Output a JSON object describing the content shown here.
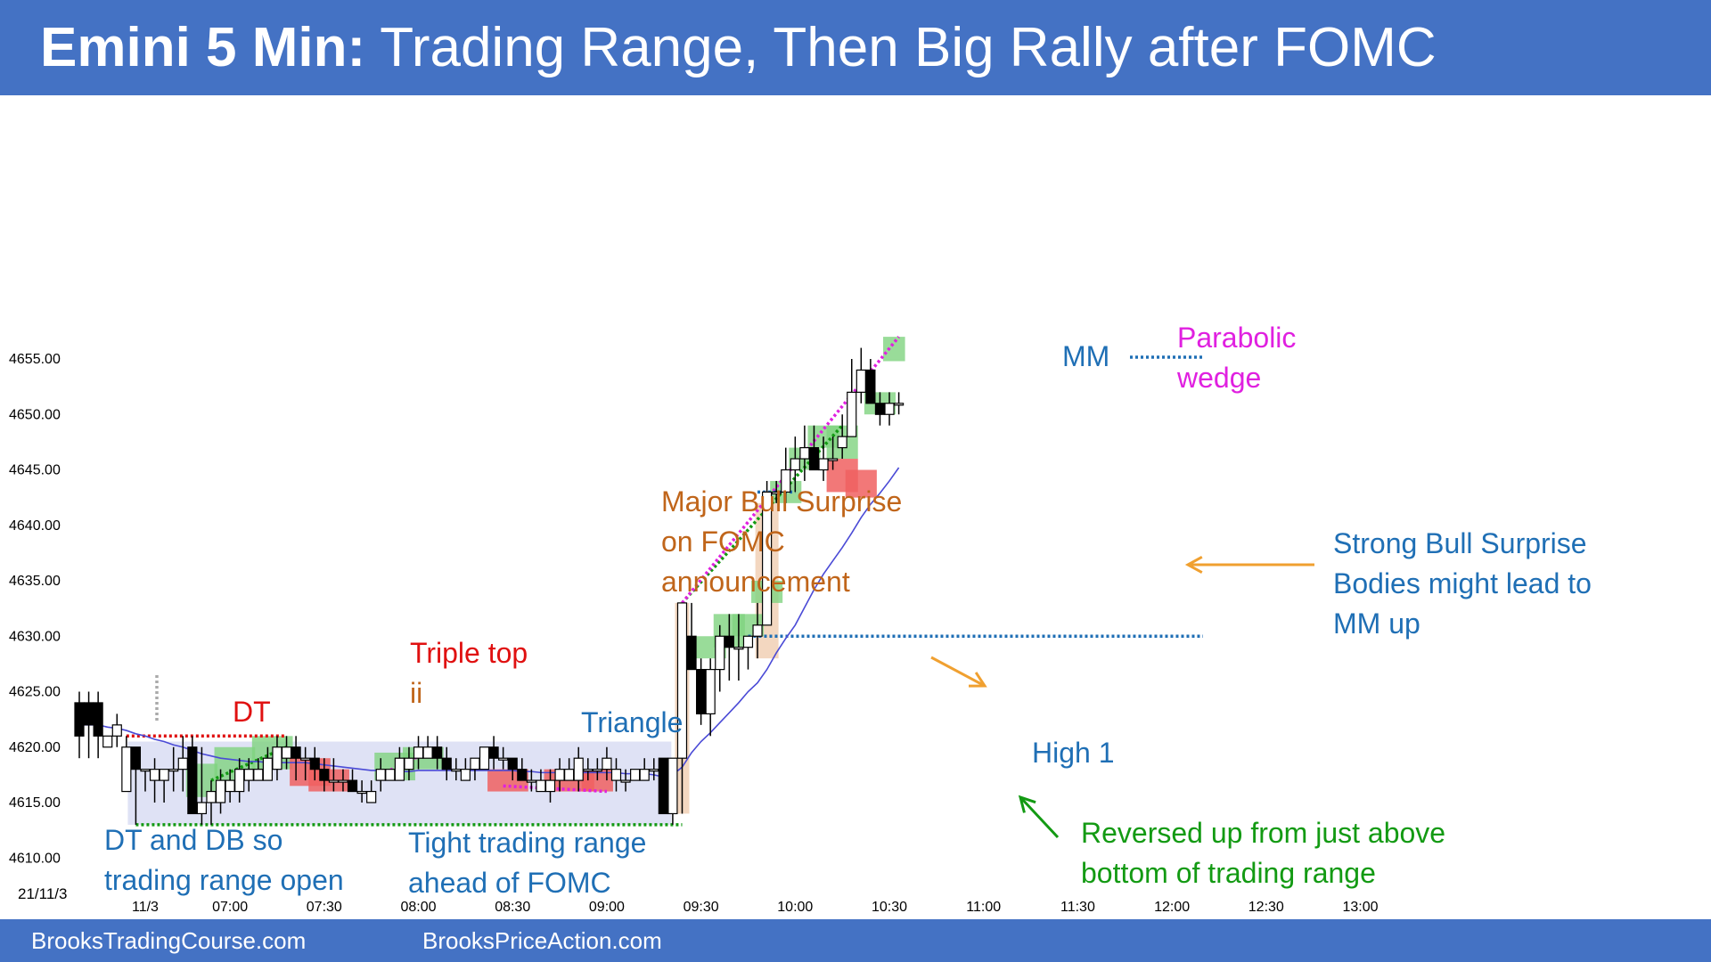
{
  "header": {
    "title_bold": "Emini 5 Min:",
    "title_rest": " Trading Range, Then Big Rally after FOMC",
    "background": "#4472c4"
  },
  "footer": {
    "left": "BrooksTradingCourse.com",
    "right": "BrooksPriceAction.com"
  },
  "colors": {
    "bull_body": "#ffffff",
    "bear_body": "#000000",
    "ema": "#4a4ad6",
    "green_box": "#7fd37f",
    "red_box": "#f06060",
    "range_box": "#dfe2f5",
    "surprise_bar": "#f3d7c0",
    "blue_text": "#1f6fb5",
    "red_text": "#e01010",
    "orange_text": "#c0651a",
    "green_text": "#139a13",
    "magenta_text": "#e020e0"
  },
  "chart_data": {
    "type": "candlestick",
    "date_label": "21/11/3",
    "x_tick_labels": [
      "11/3",
      "07:00",
      "07:30",
      "08:00",
      "08:30",
      "09:00",
      "09:30",
      "10:00",
      "10:30",
      "11:00",
      "11:30",
      "12:00",
      "12:30",
      "13:00"
    ],
    "x_tick_bars": [
      7,
      16,
      26,
      36,
      46,
      56,
      66,
      76,
      86,
      96,
      106,
      116,
      126,
      136
    ],
    "y_tick_labels": [
      "4655.00",
      "4650.00",
      "4645.00",
      "4640.00",
      "4635.00",
      "4630.00",
      "4625.00",
      "4620.00",
      "4615.00",
      "4610.00"
    ],
    "ylim": [
      4608.5,
      4657.5
    ],
    "grid": false,
    "candles": [
      [
        4624,
        4625,
        4619,
        4621
      ],
      [
        4624,
        4625,
        4619,
        4622
      ],
      [
        4624,
        4625,
        4619,
        4621
      ],
      [
        4620,
        4621,
        4620,
        4621
      ],
      [
        4621,
        4623,
        4620,
        4622
      ],
      [
        4616,
        4621,
        4616,
        4620
      ],
      [
        4620,
        4620,
        4613,
        4618
      ],
      [
        4618,
        4618,
        4616,
        4618
      ],
      [
        4617,
        4619,
        4615,
        4618
      ],
      [
        4617,
        4618,
        4615,
        4618
      ],
      [
        4618,
        4620,
        4616,
        4618
      ],
      [
        4618,
        4621,
        4616,
        4619
      ],
      [
        4620,
        4621,
        4614,
        4614
      ],
      [
        4614,
        4620,
        4613,
        4615
      ],
      [
        4615,
        4617,
        4613,
        4616
      ],
      [
        4615,
        4618,
        4614,
        4617
      ],
      [
        4616,
        4618,
        4615,
        4617
      ],
      [
        4616,
        4619,
        4615,
        4618
      ],
      [
        4617,
        4619,
        4616,
        4618
      ],
      [
        4617,
        4619,
        4617,
        4618
      ],
      [
        4617,
        4620,
        4617,
        4619
      ],
      [
        4618,
        4621,
        4617,
        4620
      ],
      [
        4619,
        4621,
        4618,
        4620
      ],
      [
        4620,
        4621,
        4617,
        4619
      ],
      [
        4619,
        4620,
        4617,
        4619
      ],
      [
        4619,
        4620,
        4617,
        4618
      ],
      [
        4618,
        4619,
        4616,
        4617
      ],
      [
        4617,
        4619,
        4616,
        4617
      ],
      [
        4617,
        4618,
        4616,
        4617
      ],
      [
        4617,
        4618,
        4616,
        4616
      ],
      [
        4616,
        4617,
        4615,
        4616
      ],
      [
        4615,
        4617,
        4615,
        4616
      ],
      [
        4617,
        4619,
        4616,
        4618
      ],
      [
        4617,
        4618,
        4617,
        4618
      ],
      [
        4617,
        4620,
        4617,
        4619
      ],
      [
        4618,
        4620,
        4617,
        4619
      ],
      [
        4619,
        4621,
        4618,
        4620
      ],
      [
        4619,
        4621,
        4619,
        4620
      ],
      [
        4620,
        4621,
        4618,
        4619
      ],
      [
        4619,
        4620,
        4617,
        4618
      ],
      [
        4618,
        4619,
        4617,
        4618
      ],
      [
        4617,
        4619,
        4617,
        4618
      ],
      [
        4618,
        4619,
        4617,
        4619
      ],
      [
        4618,
        4620,
        4618,
        4620
      ],
      [
        4620,
        4621,
        4618,
        4619
      ],
      [
        4619,
        4620,
        4618,
        4619
      ],
      [
        4619,
        4619,
        4617,
        4618
      ],
      [
        4618,
        4619,
        4617,
        4617
      ],
      [
        4617,
        4618,
        4616,
        4617
      ],
      [
        4616,
        4618,
        4616,
        4617
      ],
      [
        4616,
        4618,
        4615,
        4617
      ],
      [
        4617,
        4619,
        4616,
        4618
      ],
      [
        4617,
        4619,
        4617,
        4618
      ],
      [
        4617,
        4620,
        4616,
        4619
      ],
      [
        4618,
        4619,
        4617,
        4618
      ],
      [
        4618,
        4619,
        4617,
        4618
      ],
      [
        4618,
        4620,
        4617,
        4619
      ],
      [
        4617,
        4619,
        4616,
        4618
      ],
      [
        4617,
        4618,
        4616,
        4617
      ],
      [
        4617,
        4618,
        4617,
        4618
      ],
      [
        4617,
        4619,
        4617,
        4618
      ],
      [
        4618,
        4619,
        4617,
        4618
      ],
      [
        4619,
        4619,
        4614,
        4614
      ],
      [
        4614,
        4619,
        4613,
        4619
      ],
      [
        4619,
        4633,
        4614,
        4633
      ],
      [
        4630,
        4633,
        4627,
        4627
      ],
      [
        4627,
        4628,
        4622,
        4623
      ],
      [
        4623,
        4628,
        4621,
        4627
      ],
      [
        4627,
        4631,
        4625,
        4630
      ],
      [
        4630,
        4632,
        4626,
        4629
      ],
      [
        4629,
        4632,
        4626,
        4629
      ],
      [
        4629,
        4630,
        4627,
        4630
      ],
      [
        4630,
        4633,
        4628,
        4631
      ],
      [
        4631,
        4644,
        4631,
        4643
      ],
      [
        4643,
        4644,
        4642,
        4643
      ],
      [
        4643,
        4647,
        4642,
        4645
      ],
      [
        4645,
        4648,
        4643,
        4646
      ],
      [
        4646,
        4649,
        4644,
        4647
      ],
      [
        4647,
        4649,
        4645,
        4645
      ],
      [
        4645,
        4648,
        4644,
        4646
      ],
      [
        4646,
        4648,
        4645,
        4646
      ],
      [
        4647,
        4650,
        4646,
        4648
      ],
      [
        4648,
        4655,
        4648,
        4652
      ],
      [
        4652,
        4656,
        4651,
        4654
      ],
      [
        4654,
        4655,
        4651,
        4651
      ],
      [
        4651,
        4652,
        4649,
        4650
      ],
      [
        4650,
        4652,
        4649,
        4651
      ],
      [
        4651,
        4652,
        4650,
        4651
      ]
    ],
    "ema_20": [
      4622,
      4622,
      4622,
      4621.8,
      4621.7,
      4621.5,
      4621.2,
      4621,
      4620.7,
      4620.5,
      4620.2,
      4620,
      4619.7,
      4619.4,
      4619.2,
      4619,
      4618.9,
      4618.8,
      4618.7,
      4618.7,
      4618.6,
      4618.6,
      4618.6,
      4618.6,
      4618.6,
      4618.5,
      4618.4,
      4618.3,
      4618.2,
      4618.1,
      4618,
      4617.9,
      4617.9,
      4617.8,
      4617.8,
      4617.8,
      4617.9,
      4617.9,
      4617.9,
      4617.9,
      4617.9,
      4617.9,
      4617.9,
      4617.9,
      4617.9,
      4617.9,
      4617.9,
      4617.8,
      4617.8,
      4617.7,
      4617.7,
      4617.7,
      4617.7,
      4617.7,
      4617.7,
      4617.7,
      4617.7,
      4617.7,
      4617.6,
      4617.6,
      4617.6,
      4617.5,
      4617.3,
      4617.5,
      4618.2,
      4619.5,
      4620.5,
      4621.3,
      4622.2,
      4623.1,
      4624,
      4625,
      4625.8,
      4627,
      4628.5,
      4629.8,
      4631,
      4632.6,
      4634.2,
      4635.6,
      4636.8,
      4638,
      4639.3,
      4640.7,
      4641.9,
      4642.9,
      4644,
      4645.2
    ],
    "annotations": [
      {
        "id": "dt",
        "lines": [
          "DT"
        ],
        "color": "red"
      },
      {
        "id": "triple-top",
        "lines": [
          "Triple top",
          "ii"
        ],
        "color": "red"
      },
      {
        "id": "triangle",
        "lines": [
          "Triangle"
        ],
        "color": "blue"
      },
      {
        "id": "dt-db",
        "lines": [
          "DT and DB so",
          "trading range open"
        ],
        "color": "blue"
      },
      {
        "id": "tight-tr",
        "lines": [
          "Tight trading range",
          "ahead of FOMC"
        ],
        "color": "blue"
      },
      {
        "id": "major-bull",
        "lines": [
          "Major Bull Surprise",
          "on FOMC",
          "announcement"
        ],
        "color": "orange"
      },
      {
        "id": "high1",
        "lines": [
          "High 1"
        ],
        "color": "blue"
      },
      {
        "id": "reversed",
        "lines": [
          "Reversed up from just above",
          "bottom of trading range"
        ],
        "color": "green"
      },
      {
        "id": "strong-bull",
        "lines": [
          "Strong Bull Surprise",
          "Bodies might lead to",
          "MM up"
        ],
        "color": "blue"
      },
      {
        "id": "mm",
        "lines": [
          "MM"
        ],
        "color": "blue"
      },
      {
        "id": "parabolic",
        "lines": [
          "Parabolic",
          "wedge"
        ],
        "color": "magenta"
      }
    ]
  }
}
